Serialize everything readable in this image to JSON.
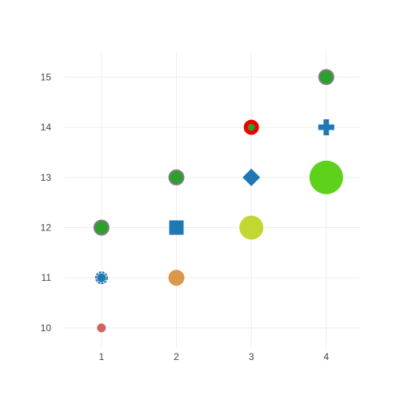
{
  "chart_data": {
    "type": "scatter",
    "title": "",
    "xlabel": "",
    "ylabel": "",
    "xlim": [
      0.5,
      4.45
    ],
    "ylim": [
      9.6,
      15.5
    ],
    "x_ticks": [
      1,
      2,
      3,
      4
    ],
    "y_ticks": [
      10,
      11,
      12,
      13,
      14,
      15
    ],
    "grid": true,
    "legend": "none",
    "points": [
      {
        "x": 1,
        "y": 10,
        "symbol": "circle",
        "size": 11,
        "color": "#d36262",
        "line_color": "",
        "line_width": 0
      },
      {
        "x": 1,
        "y": 11,
        "symbol": "circle-open-dot",
        "size": 16,
        "color": "#1f77b4",
        "line_color": "#1f77b4",
        "line_width": 2
      },
      {
        "x": 1,
        "y": 12,
        "symbol": "circle",
        "size": 18,
        "color": "#2ca02c",
        "line_color": "#7f7f7f",
        "line_width": 2
      },
      {
        "x": 2,
        "y": 11,
        "symbol": "circle",
        "size": 20,
        "color": "#d9984a",
        "line_color": "",
        "line_width": 0
      },
      {
        "x": 2,
        "y": 12,
        "symbol": "square",
        "size": 18,
        "color": "#1f77b4",
        "line_color": "",
        "line_width": 0
      },
      {
        "x": 2,
        "y": 13,
        "symbol": "circle",
        "size": 18,
        "color": "#2ca02c",
        "line_color": "#7f7f7f",
        "line_width": 2
      },
      {
        "x": 3,
        "y": 12,
        "symbol": "circle",
        "size": 30,
        "color": "#c4d631",
        "line_color": "",
        "line_width": 0
      },
      {
        "x": 3,
        "y": 13,
        "symbol": "diamond",
        "size": 22,
        "color": "#1f77b4",
        "line_color": "",
        "line_width": 0
      },
      {
        "x": 3,
        "y": 14,
        "symbol": "circle",
        "size": 14,
        "color": "#2ca02c",
        "line_color": "#ee0000",
        "line_width": 5
      },
      {
        "x": 4,
        "y": 13,
        "symbol": "circle",
        "size": 42,
        "color": "#5ed11c",
        "line_color": "",
        "line_width": 0
      },
      {
        "x": 4,
        "y": 14,
        "symbol": "cross",
        "size": 20,
        "color": "#1f77b4",
        "line_color": "",
        "line_width": 0
      },
      {
        "x": 4,
        "y": 15,
        "symbol": "circle",
        "size": 18,
        "color": "#2ca02c",
        "line_color": "#7f7f7f",
        "line_width": 2
      }
    ]
  }
}
